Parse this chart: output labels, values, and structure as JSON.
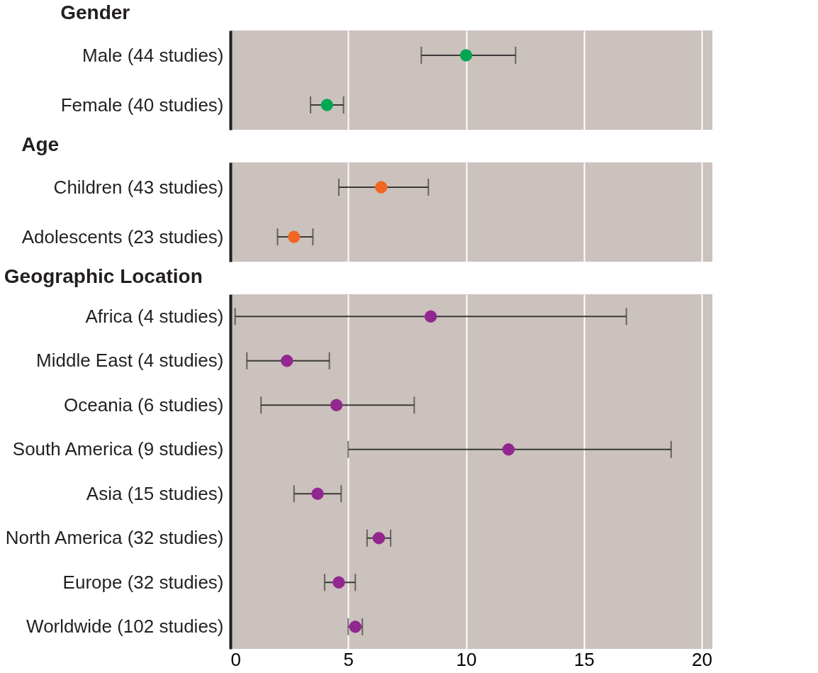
{
  "chart_data": [
    {
      "type": "scatter",
      "orientation": "horizontal",
      "title": "Gender",
      "categories": [
        "Male (44 studies)",
        "Female (40 studies)"
      ],
      "series": [
        {
          "color": "#00a651",
          "values": [
            10.0,
            4.1
          ],
          "errors": [
            [
              8.1,
              12.1
            ],
            [
              3.4,
              4.8
            ]
          ]
        }
      ],
      "xlim": [
        0,
        20.45
      ],
      "xticks": [
        0,
        5,
        10,
        15,
        20
      ],
      "grid": "x",
      "marker": "circle",
      "tick_labels": "y"
    },
    {
      "type": "scatter",
      "orientation": "horizontal",
      "title": "Age",
      "categories": [
        "Children (43 studies)",
        "Adolescents (23 studies)"
      ],
      "series": [
        {
          "color": "#f26522",
          "values": [
            6.4,
            2.7
          ],
          "errors": [
            [
              4.6,
              8.4
            ],
            [
              2.0,
              3.5
            ]
          ]
        }
      ],
      "xlim": [
        0,
        20.45
      ],
      "xticks": [
        0,
        5,
        10,
        15,
        20
      ],
      "grid": "x",
      "marker": "circle",
      "tick_labels": "y"
    },
    {
      "type": "scatter",
      "orientation": "horizontal",
      "title": "Geographic Location",
      "categories": [
        "Africa (4 studies)",
        "Middle East (4 studies)",
        "Oceania (6 studies)",
        "South America (9 studies)",
        "Asia (15 studies)",
        "North America (32 studies)",
        "Europe (32 studies)",
        "Worldwide (102 studies)"
      ],
      "series": [
        {
          "color": "#92278f",
          "values": [
            8.5,
            2.4,
            4.5,
            11.8,
            3.7,
            6.3,
            4.6,
            5.3
          ],
          "errors": [
            [
              0.2,
              16.8
            ],
            [
              0.7,
              4.2
            ],
            [
              1.3,
              7.8
            ],
            [
              5.0,
              18.7
            ],
            [
              2.7,
              4.7
            ],
            [
              5.8,
              6.8
            ],
            [
              4.0,
              5.3
            ],
            [
              5.0,
              5.6
            ]
          ]
        }
      ],
      "xlim": [
        0,
        20.45
      ],
      "xticks": [
        0,
        5,
        10,
        15,
        20
      ],
      "grid": "x",
      "marker": "circle"
    }
  ]
}
